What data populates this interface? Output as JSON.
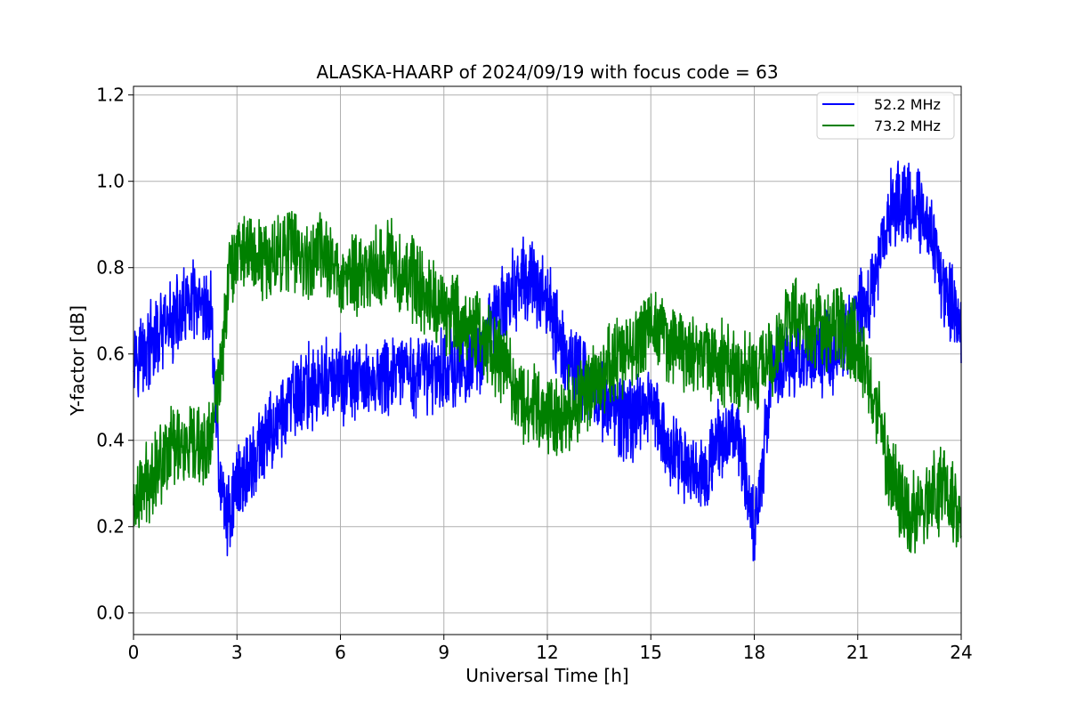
{
  "chart_data": {
    "type": "line",
    "title": "ALASKA-HAARP of 2024/09/19 with focus code = 63",
    "xlabel": "Universal Time [h]",
    "ylabel": "Y-factor [dB]",
    "xlim": [
      0,
      24
    ],
    "ylim": [
      -0.05,
      1.22
    ],
    "xticks": [
      0,
      3,
      6,
      9,
      12,
      15,
      18,
      21,
      24
    ],
    "xtick_labels": [
      "0",
      "3",
      "6",
      "9",
      "12",
      "15",
      "18",
      "21",
      "24"
    ],
    "yticks": [
      0.0,
      0.2,
      0.4,
      0.6,
      0.8,
      1.0,
      1.2
    ],
    "ytick_labels": [
      "0.0",
      "0.2",
      "0.4",
      "0.6",
      "0.8",
      "1.0",
      "1.2"
    ],
    "grid": true,
    "legend_position": "top-right",
    "series": [
      {
        "name": "52.2 MHz",
        "color": "#0000ff",
        "x": [
          0,
          0.25,
          0.5,
          0.75,
          1,
          1.25,
          1.5,
          1.75,
          2,
          2.25,
          2.5,
          2.75,
          3,
          3.5,
          4,
          4.5,
          5,
          5.5,
          6,
          6.5,
          7,
          7.5,
          8,
          8.5,
          9,
          9.5,
          10,
          10.5,
          11,
          11.5,
          12,
          12.5,
          13,
          13.5,
          14,
          14.5,
          15,
          15.5,
          16,
          16.5,
          17,
          17.5,
          17.8,
          18,
          18.2,
          18.5,
          19,
          19.5,
          20,
          20.5,
          21,
          21.5,
          22,
          22.5,
          23,
          23.5,
          24
        ],
        "y": [
          0.62,
          0.6,
          0.62,
          0.64,
          0.66,
          0.68,
          0.7,
          0.72,
          0.68,
          0.7,
          0.3,
          0.22,
          0.3,
          0.35,
          0.42,
          0.48,
          0.52,
          0.53,
          0.54,
          0.53,
          0.54,
          0.55,
          0.55,
          0.56,
          0.57,
          0.57,
          0.6,
          0.68,
          0.75,
          0.78,
          0.72,
          0.6,
          0.55,
          0.5,
          0.45,
          0.45,
          0.5,
          0.38,
          0.35,
          0.32,
          0.4,
          0.42,
          0.3,
          0.2,
          0.32,
          0.55,
          0.58,
          0.6,
          0.6,
          0.62,
          0.7,
          0.75,
          0.95,
          0.95,
          0.92,
          0.75,
          0.68
        ]
      },
      {
        "name": "73.2 MHz",
        "color": "#008000",
        "x": [
          0,
          0.25,
          0.5,
          0.75,
          1,
          1.25,
          1.5,
          1.75,
          2,
          2.25,
          2.5,
          2.75,
          3,
          3.5,
          4,
          4.5,
          5,
          5.5,
          6,
          6.5,
          7,
          7.5,
          8,
          8.5,
          9,
          9.5,
          10,
          10.5,
          11,
          11.5,
          12,
          12.5,
          13,
          13.5,
          14,
          14.5,
          15,
          15.5,
          16,
          16.5,
          17,
          17.5,
          18,
          18.5,
          19,
          19.5,
          20,
          20.5,
          21,
          21.5,
          22,
          22.5,
          23,
          23.5,
          24
        ],
        "y": [
          0.25,
          0.28,
          0.32,
          0.35,
          0.38,
          0.4,
          0.38,
          0.37,
          0.38,
          0.4,
          0.55,
          0.78,
          0.85,
          0.83,
          0.82,
          0.85,
          0.82,
          0.83,
          0.78,
          0.78,
          0.8,
          0.82,
          0.78,
          0.74,
          0.7,
          0.68,
          0.65,
          0.6,
          0.53,
          0.48,
          0.46,
          0.46,
          0.5,
          0.55,
          0.58,
          0.62,
          0.68,
          0.62,
          0.6,
          0.58,
          0.58,
          0.55,
          0.55,
          0.6,
          0.7,
          0.68,
          0.65,
          0.66,
          0.62,
          0.5,
          0.3,
          0.22,
          0.25,
          0.3,
          0.2
        ]
      }
    ]
  }
}
